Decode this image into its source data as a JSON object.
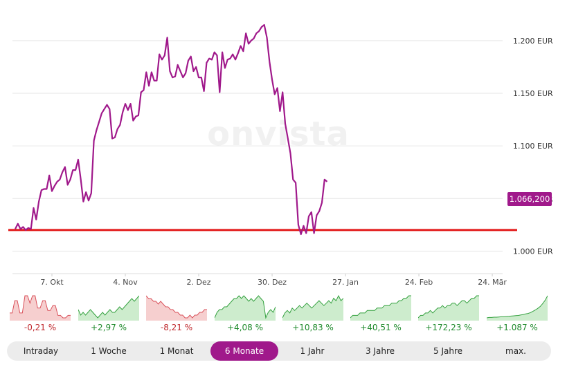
{
  "watermark": "onvista",
  "current_price_label": "1.066,200",
  "chart_data": {
    "type": "line",
    "y_tick_labels": [
      "1.000 EUR",
      "1.050 EUR",
      "1.100 EUR",
      "1.150 EUR",
      "1.200 EUR"
    ],
    "y_ticks": [
      1000,
      1050,
      1100,
      1150,
      1200
    ],
    "ylim": [
      995,
      1215
    ],
    "x_tick_labels": [
      "7. Okt",
      "4. Nov",
      "2. Dez",
      "30. Dez",
      "27. Jan",
      "24. Feb",
      "24. Mär"
    ],
    "x_ticks": [
      14,
      42,
      70,
      98,
      126,
      154,
      182
    ],
    "xlim": [
      0,
      187
    ],
    "reference_line": {
      "value": 1020,
      "color": "#e31b1b"
    },
    "series": [
      {
        "color": "#a0198b",
        "points": [
          [
            0,
            1021
          ],
          [
            1,
            1026
          ],
          [
            2,
            1021
          ],
          [
            3,
            1023
          ],
          [
            4,
            1020
          ],
          [
            5,
            1022
          ],
          [
            6,
            1021
          ],
          [
            7,
            1041
          ],
          [
            8,
            1030
          ],
          [
            9,
            1047
          ],
          [
            10,
            1058
          ],
          [
            11,
            1059
          ],
          [
            12,
            1059
          ],
          [
            13,
            1072
          ],
          [
            14,
            1057
          ],
          [
            15,
            1062
          ],
          [
            16,
            1066
          ],
          [
            17,
            1068
          ],
          [
            18,
            1075
          ],
          [
            19,
            1080
          ],
          [
            20,
            1063
          ],
          [
            21,
            1068
          ],
          [
            22,
            1077
          ],
          [
            23,
            1077
          ],
          [
            24,
            1087
          ],
          [
            25,
            1068
          ],
          [
            26,
            1047
          ],
          [
            27,
            1056
          ],
          [
            28,
            1048
          ],
          [
            29,
            1055
          ],
          [
            30,
            1105
          ],
          [
            31,
            1115
          ],
          [
            32,
            1123
          ],
          [
            33,
            1131
          ],
          [
            34,
            1135
          ],
          [
            35,
            1139
          ],
          [
            36,
            1135
          ],
          [
            37,
            1107
          ],
          [
            38,
            1108
          ],
          [
            39,
            1116
          ],
          [
            40,
            1120
          ],
          [
            41,
            1132
          ],
          [
            42,
            1140
          ],
          [
            43,
            1134
          ],
          [
            44,
            1140
          ],
          [
            45,
            1124
          ],
          [
            46,
            1128
          ],
          [
            47,
            1129
          ],
          [
            48,
            1151
          ],
          [
            49,
            1153
          ],
          [
            50,
            1170
          ],
          [
            51,
            1157
          ],
          [
            52,
            1170
          ],
          [
            53,
            1162
          ],
          [
            54,
            1162
          ],
          [
            55,
            1187
          ],
          [
            56,
            1182
          ],
          [
            57,
            1186
          ],
          [
            58,
            1203
          ],
          [
            59,
            1171
          ],
          [
            60,
            1165
          ],
          [
            61,
            1166
          ],
          [
            62,
            1177
          ],
          [
            63,
            1171
          ],
          [
            64,
            1165
          ],
          [
            65,
            1169
          ],
          [
            66,
            1181
          ],
          [
            67,
            1185
          ],
          [
            68,
            1171
          ],
          [
            69,
            1175
          ],
          [
            70,
            1165
          ],
          [
            71,
            1165
          ],
          [
            72,
            1152
          ],
          [
            73,
            1179
          ],
          [
            74,
            1183
          ],
          [
            75,
            1182
          ],
          [
            76,
            1189
          ],
          [
            77,
            1186
          ],
          [
            78,
            1151
          ],
          [
            79,
            1189
          ],
          [
            80,
            1174
          ],
          [
            81,
            1182
          ],
          [
            82,
            1183
          ],
          [
            83,
            1187
          ],
          [
            84,
            1182
          ],
          [
            85,
            1188
          ],
          [
            86,
            1195
          ],
          [
            87,
            1190
          ],
          [
            88,
            1207
          ],
          [
            89,
            1197
          ],
          [
            90,
            1200
          ],
          [
            91,
            1202
          ],
          [
            92,
            1207
          ],
          [
            93,
            1209
          ],
          [
            94,
            1213
          ],
          [
            95,
            1215
          ],
          [
            96,
            1203
          ],
          [
            97,
            1180
          ],
          [
            98,
            1163
          ],
          [
            99,
            1149
          ],
          [
            100,
            1155
          ],
          [
            101,
            1133
          ],
          [
            102,
            1151
          ],
          [
            103,
            1121
          ],
          [
            104,
            1107
          ],
          [
            105,
            1093
          ],
          [
            106,
            1068
          ],
          [
            107,
            1065
          ],
          [
            108,
            1025
          ],
          [
            109,
            1016
          ],
          [
            110,
            1024
          ],
          [
            111,
            1017
          ],
          [
            112,
            1033
          ],
          [
            113,
            1037
          ],
          [
            114,
            1017
          ],
          [
            115,
            1034
          ],
          [
            116,
            1038
          ],
          [
            117,
            1046
          ],
          [
            118,
            1068
          ],
          [
            119,
            1066
          ]
        ]
      }
    ]
  },
  "performance_tiles": [
    {
      "label": "-0,21 %",
      "trend": "down",
      "color": "#c0282d",
      "fill": "#f6cfcf",
      "line": "#d9505a",
      "values": [
        3,
        3,
        8,
        8,
        3,
        3,
        10,
        10,
        7,
        10,
        10,
        5,
        5,
        8,
        8,
        4,
        4,
        6,
        6,
        2,
        2,
        1,
        1,
        2,
        2
      ]
    },
    {
      "label": "+2,97 %",
      "trend": "up",
      "color": "#1f8a2c",
      "fill": "#cdeccd",
      "line": "#34a13f",
      "values": [
        5,
        3,
        4,
        3,
        4,
        5,
        4,
        3,
        2,
        3,
        4,
        3,
        4,
        5,
        4,
        4,
        5,
        6,
        5,
        6,
        7,
        8,
        9,
        8,
        9,
        10
      ]
    },
    {
      "label": "-8,21 %",
      "trend": "down",
      "color": "#c0282d",
      "fill": "#f6cfcf",
      "line": "#d9505a",
      "values": [
        10,
        9,
        9,
        8,
        8,
        7,
        8,
        7,
        6,
        6,
        5,
        5,
        4,
        4,
        3,
        3,
        2,
        2,
        3,
        2,
        3,
        3,
        4,
        4,
        5,
        5
      ]
    },
    {
      "label": "+4,08 %",
      "trend": "up",
      "color": "#1f8a2c",
      "fill": "#cdeccd",
      "line": "#34a13f",
      "values": [
        2,
        4,
        5,
        5,
        6,
        6,
        7,
        8,
        9,
        9,
        10,
        9,
        10,
        9,
        8,
        9,
        8,
        9,
        10,
        9,
        8,
        2,
        4,
        5,
        4,
        6
      ]
    },
    {
      "label": "+10,83 %",
      "trend": "up",
      "color": "#1f8a2c",
      "fill": "#cdeccd",
      "line": "#34a13f",
      "values": [
        1,
        3,
        4,
        3,
        5,
        4,
        5,
        6,
        5,
        6,
        7,
        6,
        5,
        6,
        7,
        8,
        7,
        6,
        7,
        8,
        7,
        9,
        8,
        10,
        8,
        9
      ]
    },
    {
      "label": "+40,51 %",
      "trend": "up",
      "color": "#1f8a2c",
      "fill": "#cdeccd",
      "line": "#34a13f",
      "values": [
        1,
        2,
        2,
        2,
        3,
        3,
        3,
        4,
        4,
        4,
        4,
        5,
        5,
        5,
        6,
        6,
        6,
        7,
        7,
        7,
        8,
        8,
        9,
        9,
        10,
        10
      ]
    },
    {
      "label": "+172,23 %",
      "trend": "up",
      "color": "#1f8a2c",
      "fill": "#cdeccd",
      "line": "#34a13f",
      "values": [
        1,
        2,
        2,
        3,
        3,
        4,
        3,
        4,
        5,
        5,
        6,
        5,
        6,
        6,
        7,
        7,
        6,
        7,
        8,
        8,
        7,
        8,
        9,
        9,
        10,
        10
      ]
    },
    {
      "label": "+1.087 %",
      "trend": "up",
      "color": "#1f8a2c",
      "fill": "#cdeccd",
      "line": "#34a13f",
      "values": [
        0,
        0.2,
        0.2,
        0.3,
        0.3,
        0.4,
        0.5,
        0.5,
        0.6,
        0.7,
        0.8,
        0.9,
        1,
        1.1,
        1.3,
        1.5,
        1.8,
        2,
        2.4,
        3,
        3.6,
        4.3,
        5.2,
        6.5,
        8,
        10
      ]
    }
  ],
  "range_buttons": [
    {
      "label": "Intraday",
      "active": false
    },
    {
      "label": "1 Woche",
      "active": false
    },
    {
      "label": "1 Monat",
      "active": false
    },
    {
      "label": "6 Monate",
      "active": true
    },
    {
      "label": "1 Jahr",
      "active": false
    },
    {
      "label": "3 Jahre",
      "active": false
    },
    {
      "label": "5 Jahre",
      "active": false
    },
    {
      "label": "max.",
      "active": false
    }
  ]
}
